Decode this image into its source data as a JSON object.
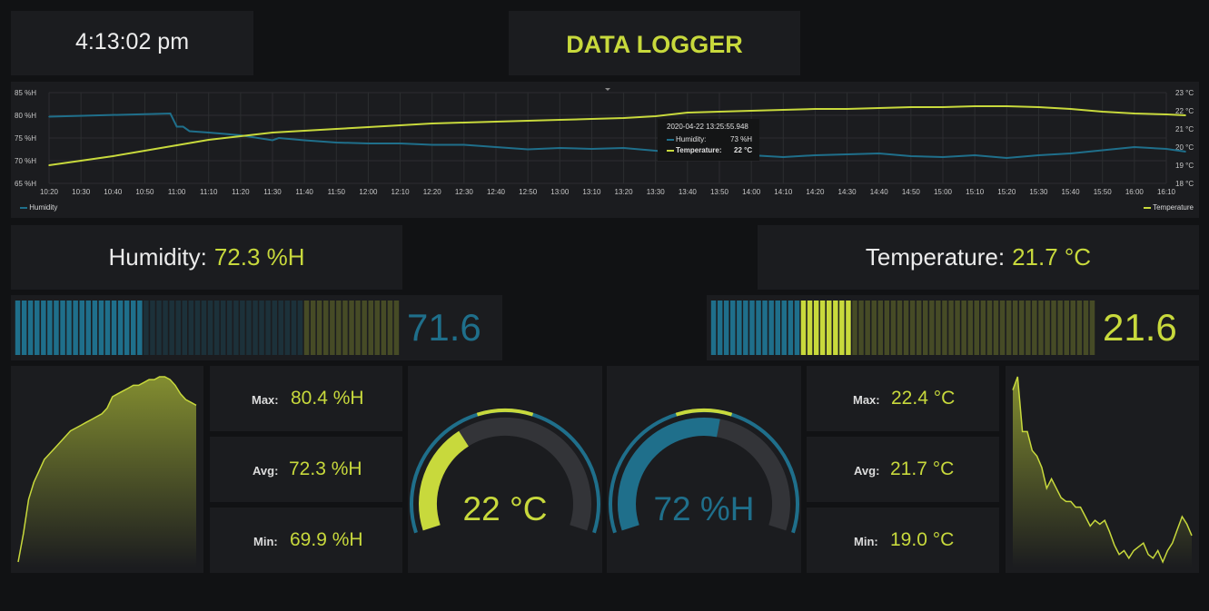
{
  "header": {
    "clock": "4:13:02 pm",
    "title": "DATA LOGGER"
  },
  "chart": {
    "tooltip": {
      "time": "2020-04-22 13:25:55.948",
      "humidity_label": "Humidity:",
      "humidity_value": "73 %H",
      "temperature_label": "Temperature:",
      "temperature_value": "22 °C"
    },
    "legend": {
      "left": "Humidity",
      "right": "Temperature"
    }
  },
  "chart_data": {
    "type": "line",
    "x_ticks": [
      "10:20",
      "10:30",
      "10:40",
      "10:50",
      "11:00",
      "11:10",
      "11:20",
      "11:30",
      "11:40",
      "11:50",
      "12:00",
      "12:10",
      "12:20",
      "12:30",
      "12:40",
      "12:50",
      "13:00",
      "13:10",
      "13:20",
      "13:30",
      "13:40",
      "13:50",
      "14:00",
      "14:10",
      "14:20",
      "14:30",
      "14:40",
      "14:50",
      "15:00",
      "15:10",
      "15:20",
      "15:30",
      "15:40",
      "15:50",
      "16:00",
      "16:10"
    ],
    "y_left_ticks": [
      "85 %H",
      "80 %H",
      "75 %H",
      "70 %H",
      "65 %H"
    ],
    "y_left_range": [
      65,
      85
    ],
    "y_right_ticks": [
      "23 °C",
      "22 °C",
      "21 °C",
      "20 °C",
      "19 °C",
      "18 °C"
    ],
    "y_right_range": [
      18,
      23
    ],
    "grid": true,
    "legend_placement": "bottom",
    "series": [
      {
        "name": "Humidity",
        "color": "#1f6f8b",
        "axis": "left",
        "x_minutes_since_1020": [
          0,
          38,
          40,
          42,
          44,
          50,
          60,
          70,
          72,
          80,
          90,
          100,
          110,
          120,
          130,
          140,
          150,
          160,
          170,
          180,
          190,
          200,
          210,
          220,
          230,
          240,
          250,
          260,
          270,
          280,
          290,
          300,
          310,
          320,
          330,
          340,
          350,
          356
        ],
        "values": [
          79.7,
          80.4,
          77.5,
          77.5,
          76.5,
          76.2,
          75.6,
          74.5,
          75.0,
          74.5,
          74.0,
          73.8,
          73.8,
          73.5,
          73.5,
          73.0,
          72.5,
          72.8,
          72.6,
          72.8,
          72.2,
          71.5,
          71.0,
          71.2,
          70.8,
          71.2,
          71.4,
          71.6,
          71.0,
          70.8,
          71.2,
          70.6,
          71.2,
          71.6,
          72.3,
          73.0,
          72.6,
          72.0
        ]
      },
      {
        "name": "Temperature",
        "color": "#c8d93c",
        "axis": "right",
        "x_minutes_since_1020": [
          0,
          20,
          40,
          50,
          60,
          70,
          80,
          90,
          100,
          110,
          120,
          130,
          140,
          150,
          160,
          170,
          180,
          190,
          200,
          210,
          220,
          230,
          240,
          250,
          260,
          270,
          280,
          290,
          300,
          310,
          320,
          330,
          340,
          350,
          356
        ],
        "values": [
          19.0,
          19.5,
          20.1,
          20.4,
          20.6,
          20.8,
          20.9,
          21.0,
          21.1,
          21.2,
          21.3,
          21.35,
          21.4,
          21.45,
          21.5,
          21.55,
          21.6,
          21.7,
          21.9,
          21.95,
          22.0,
          22.05,
          22.1,
          22.1,
          22.15,
          22.2,
          22.2,
          22.25,
          22.25,
          22.2,
          22.1,
          21.95,
          21.85,
          21.8,
          21.75
        ]
      }
    ]
  },
  "humidity": {
    "label": "Humidity:",
    "current": "72.3 %H",
    "bar_value": "71.6",
    "bar_value_num": 71.6,
    "bar_range": [
      65,
      85
    ],
    "bar_threshold": 80,
    "max_label": "Max:",
    "max": "80.4 %H",
    "avg_label": "Avg:",
    "avg": "72.3 %H",
    "min_label": "Min:",
    "min": "69.9 %H",
    "gauge_value": "72 %H",
    "gauge_num": 72,
    "gauge_range": [
      50,
      90
    ]
  },
  "temperature": {
    "label": "Temperature:",
    "current": "21.7 °C",
    "bar_value": "21.6",
    "bar_value_num": 21.6,
    "bar_range": [
      18,
      28
    ],
    "bar_threshold": 20.4,
    "max_label": "Max:",
    "max": "22.4 °C",
    "avg_label": "Avg:",
    "avg": "21.7 °C",
    "min_label": "Min:",
    "min": "19.0 °C",
    "gauge_value": "22 °C",
    "gauge_num": 22,
    "gauge_range": [
      15,
      35
    ]
  },
  "colors": {
    "lime": "#c8d93c",
    "teal": "#1f6f8b",
    "panel": "#1b1c1f",
    "background": "#111214"
  }
}
